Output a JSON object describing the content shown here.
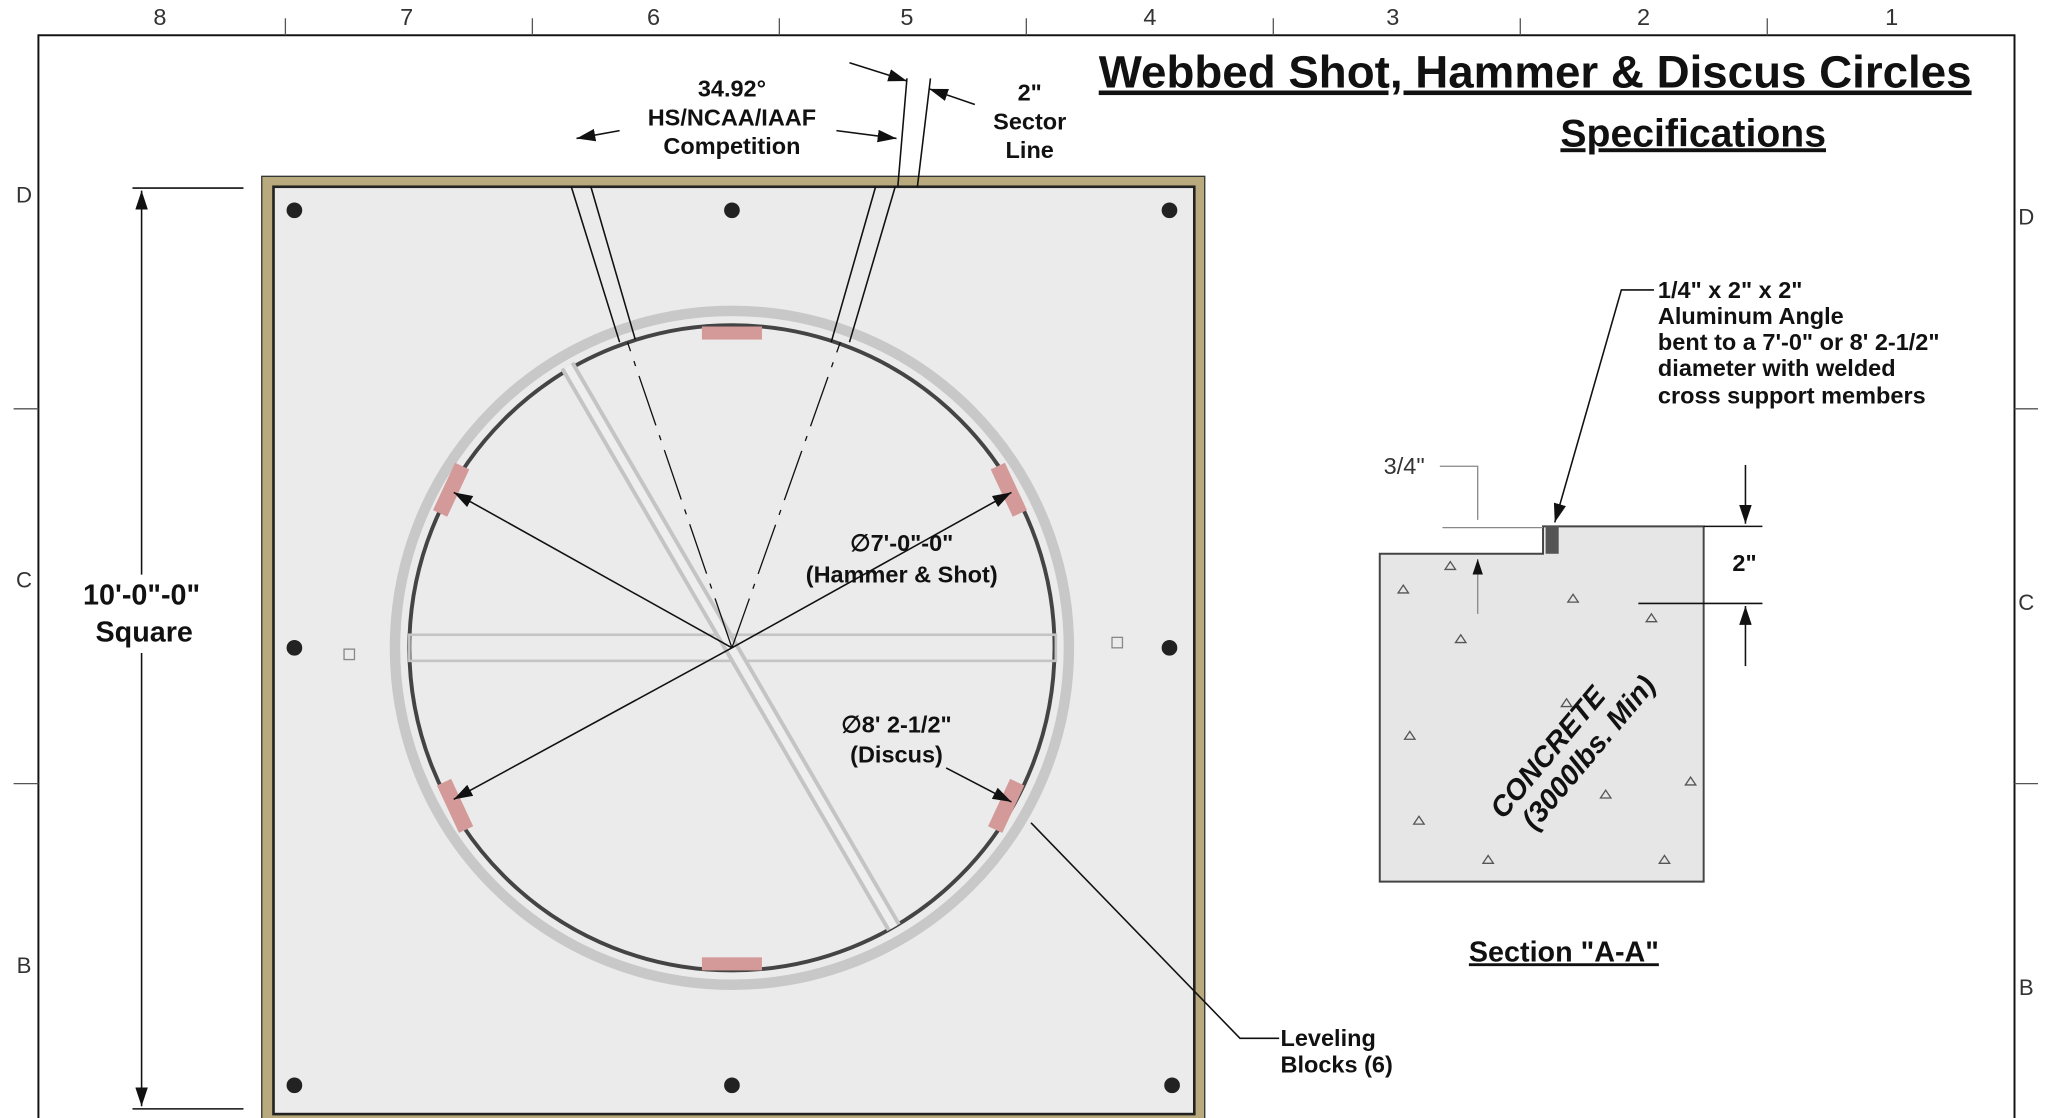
{
  "title": "Webbed Shot, Hammer & Discus Circles",
  "subtitle": "Specifications",
  "border": {
    "columns": [
      "8",
      "7",
      "6",
      "5",
      "4",
      "3",
      "2",
      "1"
    ],
    "rows": [
      "D",
      "C",
      "B"
    ]
  },
  "plan": {
    "sector_angle": [
      "34.92°",
      "HS/NCAA/IAAF",
      "Competition"
    ],
    "sector_line": [
      "2\"",
      "Sector",
      "Line"
    ],
    "square": [
      "10'-0\"-0\"",
      "Square"
    ],
    "hammer_diameter": [
      "∅7'-0\"-0\"",
      "(Hammer & Shot)"
    ],
    "discus_diameter": [
      "∅8' 2-1/2\"",
      "(Discus)"
    ],
    "leveling_blocks": [
      "Leveling",
      "Blocks (6)"
    ]
  },
  "section": {
    "angle_note": [
      "1/4\" x 2\" x 2\"",
      "Aluminum Angle",
      "bent to a 7'-0\" or 8' 2-1/2\"",
      "diameter with welded",
      "cross support members"
    ],
    "gap": "3/4\"",
    "height": "2\"",
    "material": [
      "CONCRETE",
      "(3000lbs. Min)"
    ],
    "caption": "Section \"A-A\""
  }
}
